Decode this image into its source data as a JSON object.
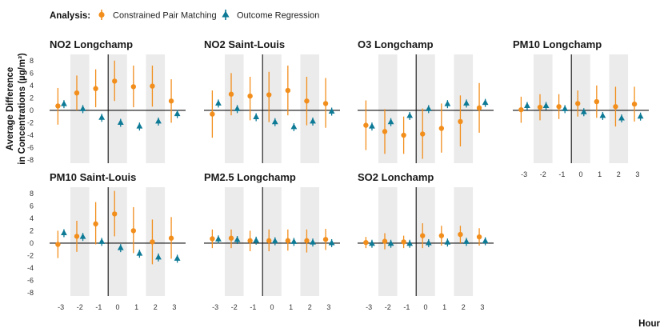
{
  "chart_data": {
    "type": "point-range",
    "legend_title": "Analysis:",
    "xlabel": "Hour",
    "ylabel_lines": [
      "Average Difference",
      "in Concentrations (µg/m³)"
    ],
    "x_ticks": [
      -3,
      -2,
      -1,
      0,
      1,
      2,
      3
    ],
    "y_ticks": [
      -8,
      -6,
      -4,
      -2,
      0,
      2,
      4,
      6,
      8
    ],
    "ylim": [
      -8.5,
      9
    ],
    "xlim": [
      -3.6,
      3.6
    ],
    "shaded_bands": [
      [
        -2.5,
        -1.5
      ],
      [
        -0.5,
        0.5
      ],
      [
        1.5,
        2.5
      ]
    ],
    "treatment_line_x": -0.5,
    "series_styles": [
      {
        "name": "Constrained Pair Matching",
        "color": "#f28e1c",
        "marker": "circle"
      },
      {
        "name": "Outcome Regression",
        "color": "#0d7a96",
        "marker": "triangle"
      }
    ],
    "panels": [
      {
        "title": "NO2 Longchamp",
        "matching": [
          [
            -3,
            0.7,
            -2.3,
            3.6
          ],
          [
            -2,
            2.8,
            0.0,
            5.6
          ],
          [
            -1,
            3.5,
            0.5,
            6.6
          ],
          [
            0,
            4.7,
            1.5,
            8.0
          ],
          [
            1,
            3.8,
            0.5,
            7.2
          ],
          [
            2,
            3.9,
            0.6,
            7.2
          ],
          [
            3,
            1.5,
            -2.0,
            5.0
          ]
        ],
        "regression": [
          [
            -3,
            1.0
          ],
          [
            -2,
            0.2
          ],
          [
            -1,
            -1.2
          ],
          [
            0,
            -2.0
          ],
          [
            1,
            -2.6
          ],
          [
            2,
            -1.8
          ],
          [
            3,
            -0.6
          ]
        ]
      },
      {
        "title": "NO2 Saint-Louis",
        "matching": [
          [
            -3,
            -0.6,
            -4.4,
            3.2
          ],
          [
            -2,
            2.6,
            -0.8,
            6.0
          ],
          [
            -1,
            2.3,
            -1.6,
            5.4
          ],
          [
            0,
            2.5,
            -1.9,
            6.2
          ],
          [
            1,
            3.2,
            -0.8,
            7.2
          ],
          [
            2,
            1.5,
            -2.4,
            5.4
          ],
          [
            3,
            1.1,
            -2.8,
            5.2
          ]
        ],
        "regression": [
          [
            -3,
            1.1
          ],
          [
            -2,
            0.2
          ],
          [
            -1,
            -1.1
          ],
          [
            0,
            -1.9
          ],
          [
            1,
            -2.7
          ],
          [
            2,
            -1.8
          ],
          [
            3,
            -0.2
          ]
        ]
      },
      {
        "title": "O3 Longchamp",
        "matching": [
          [
            -3,
            -2.4,
            -6.4,
            1.6
          ],
          [
            -2,
            -3.4,
            -7.0,
            0.2
          ],
          [
            -1,
            -4.0,
            -7.0,
            -1.0
          ],
          [
            0,
            -3.8,
            -7.8,
            0.3
          ],
          [
            1,
            -2.9,
            -6.8,
            1.1
          ],
          [
            2,
            -1.8,
            -5.8,
            2.4
          ],
          [
            3,
            0.4,
            -3.6,
            4.4
          ]
        ],
        "regression": [
          [
            -3,
            -2.6
          ],
          [
            -2,
            -1.9
          ],
          [
            -1,
            -0.9
          ],
          [
            0,
            0.2
          ],
          [
            1,
            1.0
          ],
          [
            2,
            1.1
          ],
          [
            3,
            1.2
          ]
        ]
      },
      {
        "title": "PM10 Longchamp",
        "matching": [
          [
            -3,
            0.1,
            -2.0,
            2.2
          ],
          [
            -2,
            0.5,
            -1.6,
            2.6
          ],
          [
            -1,
            0.6,
            -1.4,
            2.6
          ],
          [
            0,
            1.1,
            -1.0,
            3.2
          ],
          [
            1,
            1.4,
            -1.2,
            4.0
          ],
          [
            2,
            0.6,
            -2.6,
            3.8
          ],
          [
            3,
            1.0,
            -1.8,
            3.8
          ]
        ],
        "regression": [
          [
            -3,
            0.7
          ],
          [
            -2,
            0.7
          ],
          [
            -1,
            0.2
          ],
          [
            0,
            -0.3
          ],
          [
            1,
            -0.9
          ],
          [
            2,
            -1.3
          ],
          [
            3,
            -1.0
          ]
        ]
      },
      {
        "title": "PM10 Saint-Louis",
        "matching": [
          [
            -3,
            -0.2,
            -2.4,
            2.0
          ],
          [
            -2,
            1.1,
            -1.4,
            3.6
          ],
          [
            -1,
            3.1,
            -0.2,
            6.6
          ],
          [
            0,
            4.7,
            1.1,
            8.4
          ],
          [
            1,
            2.0,
            -1.6,
            5.8
          ],
          [
            2,
            0.2,
            -3.4,
            3.8
          ],
          [
            3,
            0.8,
            -2.5,
            4.2
          ]
        ],
        "regression": [
          [
            -3,
            1.6
          ],
          [
            -2,
            1.0
          ],
          [
            -1,
            0.2
          ],
          [
            0,
            -0.8
          ],
          [
            1,
            -1.7
          ],
          [
            2,
            -2.3
          ],
          [
            3,
            -2.5
          ]
        ]
      },
      {
        "title": "PM2.5 Longchamp",
        "matching": [
          [
            -3,
            0.7,
            -0.8,
            2.2
          ],
          [
            -2,
            0.8,
            -0.8,
            2.2
          ],
          [
            -1,
            0.4,
            -1.3,
            2.0
          ],
          [
            0,
            0.4,
            -1.3,
            2.2
          ],
          [
            1,
            0.4,
            -1.2,
            2.2
          ],
          [
            2,
            0.4,
            -1.5,
            2.2
          ],
          [
            3,
            0.6,
            -1.1,
            2.3
          ]
        ],
        "regression": [
          [
            -3,
            0.6
          ],
          [
            -2,
            0.5
          ],
          [
            -1,
            0.4
          ],
          [
            0,
            0.3
          ],
          [
            1,
            0.2
          ],
          [
            2,
            0.1
          ],
          [
            3,
            0.0
          ]
        ]
      },
      {
        "title": "SO2 Lonchamp",
        "matching": [
          [
            -3,
            0.1,
            -0.8,
            1.0
          ],
          [
            -2,
            0.3,
            -1.0,
            1.6
          ],
          [
            -1,
            0.2,
            -0.8,
            1.2
          ],
          [
            0,
            1.2,
            -0.8,
            3.2
          ],
          [
            1,
            1.2,
            -0.4,
            2.8
          ],
          [
            2,
            1.4,
            0.0,
            2.8
          ],
          [
            3,
            1.0,
            -0.4,
            2.4
          ]
        ],
        "regression": [
          [
            -3,
            -0.1
          ],
          [
            -2,
            -0.1
          ],
          [
            -1,
            -0.1
          ],
          [
            0,
            0.0
          ],
          [
            1,
            0.1
          ],
          [
            2,
            0.2
          ],
          [
            3,
            0.3
          ]
        ]
      }
    ]
  }
}
